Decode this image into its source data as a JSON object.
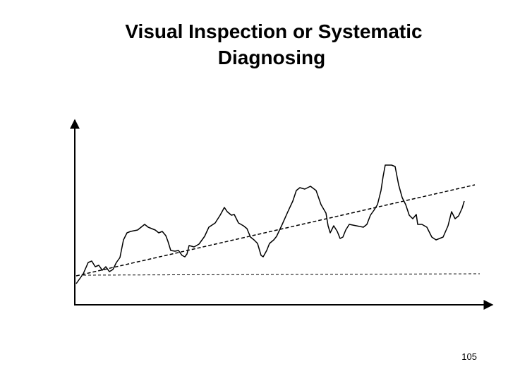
{
  "slide": {
    "title_lines": [
      "Visual Inspection or Systematic",
      "Diagnosing"
    ],
    "page_number": "105"
  }
}
